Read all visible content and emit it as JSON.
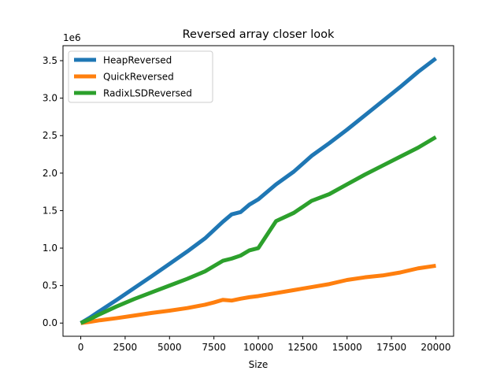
{
  "chart_data": {
    "type": "line",
    "title": "Reversed array closer look",
    "xlabel": "Size",
    "ylabel": "",
    "y_offset_text": "1e6",
    "xlim": [
      -1000,
      21000
    ],
    "ylim": [
      -176000,
      3700000
    ],
    "x_ticks": [
      0,
      2500,
      5000,
      7500,
      10000,
      12500,
      15000,
      17500,
      20000
    ],
    "x_tick_labels": [
      "0",
      "2500",
      "5000",
      "7500",
      "10000",
      "12500",
      "15000",
      "17500",
      "20000"
    ],
    "y_ticks": [
      0,
      500000,
      1000000,
      1500000,
      2000000,
      2500000,
      3000000,
      3500000
    ],
    "y_tick_labels": [
      "0.0",
      "0.5",
      "1.0",
      "1.5",
      "2.0",
      "2.5",
      "3.0",
      "3.5"
    ],
    "grid": false,
    "legend_position": "top-left",
    "series": [
      {
        "name": "HeapReversed",
        "color": "#1f77b4",
        "x": [
          0,
          500,
          1000,
          2000,
          3000,
          4000,
          5000,
          6000,
          7000,
          7500,
          8000,
          8500,
          9000,
          9500,
          10000,
          11000,
          12000,
          13000,
          14000,
          15000,
          16000,
          17000,
          18000,
          19000,
          20000
        ],
        "y": [
          0,
          70000,
          150000,
          305000,
          465000,
          625000,
          790000,
          955000,
          1130000,
          1240000,
          1350000,
          1450000,
          1480000,
          1580000,
          1650000,
          1850000,
          2020000,
          2230000,
          2400000,
          2580000,
          2770000,
          2960000,
          3150000,
          3350000,
          3530000
        ]
      },
      {
        "name": "QuickReversed",
        "color": "#ff7f0e",
        "x": [
          0,
          500,
          1000,
          2000,
          3000,
          4000,
          5000,
          6000,
          7000,
          7500,
          8000,
          8500,
          9000,
          9500,
          10000,
          11000,
          12000,
          13000,
          14000,
          15000,
          16000,
          17000,
          18000,
          19000,
          20000
        ],
        "y": [
          0,
          15000,
          35000,
          65000,
          100000,
          135000,
          165000,
          200000,
          245000,
          275000,
          310000,
          300000,
          325000,
          345000,
          360000,
          400000,
          440000,
          480000,
          520000,
          575000,
          610000,
          635000,
          675000,
          730000,
          765000
        ]
      },
      {
        "name": "RadixLSDReversed",
        "color": "#2ca02c",
        "x": [
          0,
          500,
          1000,
          2000,
          3000,
          4000,
          5000,
          6000,
          7000,
          7500,
          8000,
          8500,
          9000,
          9500,
          10000,
          11000,
          12000,
          13000,
          14000,
          15000,
          16000,
          17000,
          18000,
          19000,
          20000
        ],
        "y": [
          0,
          50000,
          110000,
          220000,
          320000,
          410000,
          500000,
          590000,
          690000,
          760000,
          830000,
          860000,
          900000,
          970000,
          1000000,
          1360000,
          1470000,
          1630000,
          1720000,
          1850000,
          1980000,
          2100000,
          2220000,
          2340000,
          2480000
        ]
      }
    ]
  }
}
